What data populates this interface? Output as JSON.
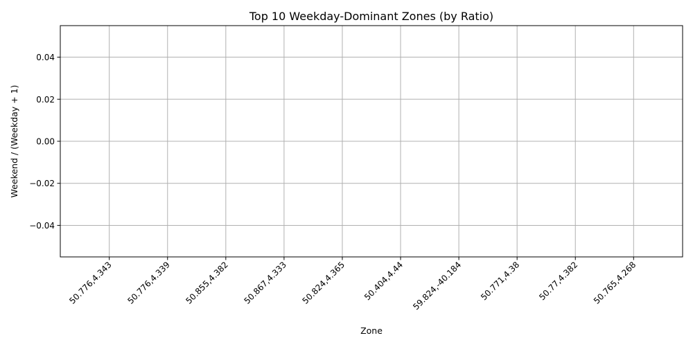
{
  "chart_data": {
    "type": "bar",
    "title": "Top 10 Weekday-Dominant Zones (by Ratio)",
    "xlabel": "Zone",
    "ylabel": "Weekend / (Weekday + 1)",
    "categories": [
      "50.776,4.343",
      "50.776,4.339",
      "50.855,4.382",
      "50.867,4.333",
      "50.824,4.365",
      "50.404,4.44",
      "59.824,-40.184",
      "50.771,4.38",
      "50.77,4.382",
      "50.765,4.268"
    ],
    "values": [
      0,
      0,
      0,
      0,
      0,
      0,
      0,
      0,
      0,
      0
    ],
    "ylim": [
      -0.055,
      0.055
    ],
    "yticks": [
      -0.04,
      -0.02,
      0.0,
      0.02,
      0.04
    ],
    "ytick_labels": [
      "−0.04",
      "−0.02",
      "0.00",
      "0.02",
      "0.04"
    ],
    "grid": true,
    "colors": {
      "bar": "#1f77b4",
      "grid": "#b0b0b0",
      "axis": "#000000"
    }
  }
}
